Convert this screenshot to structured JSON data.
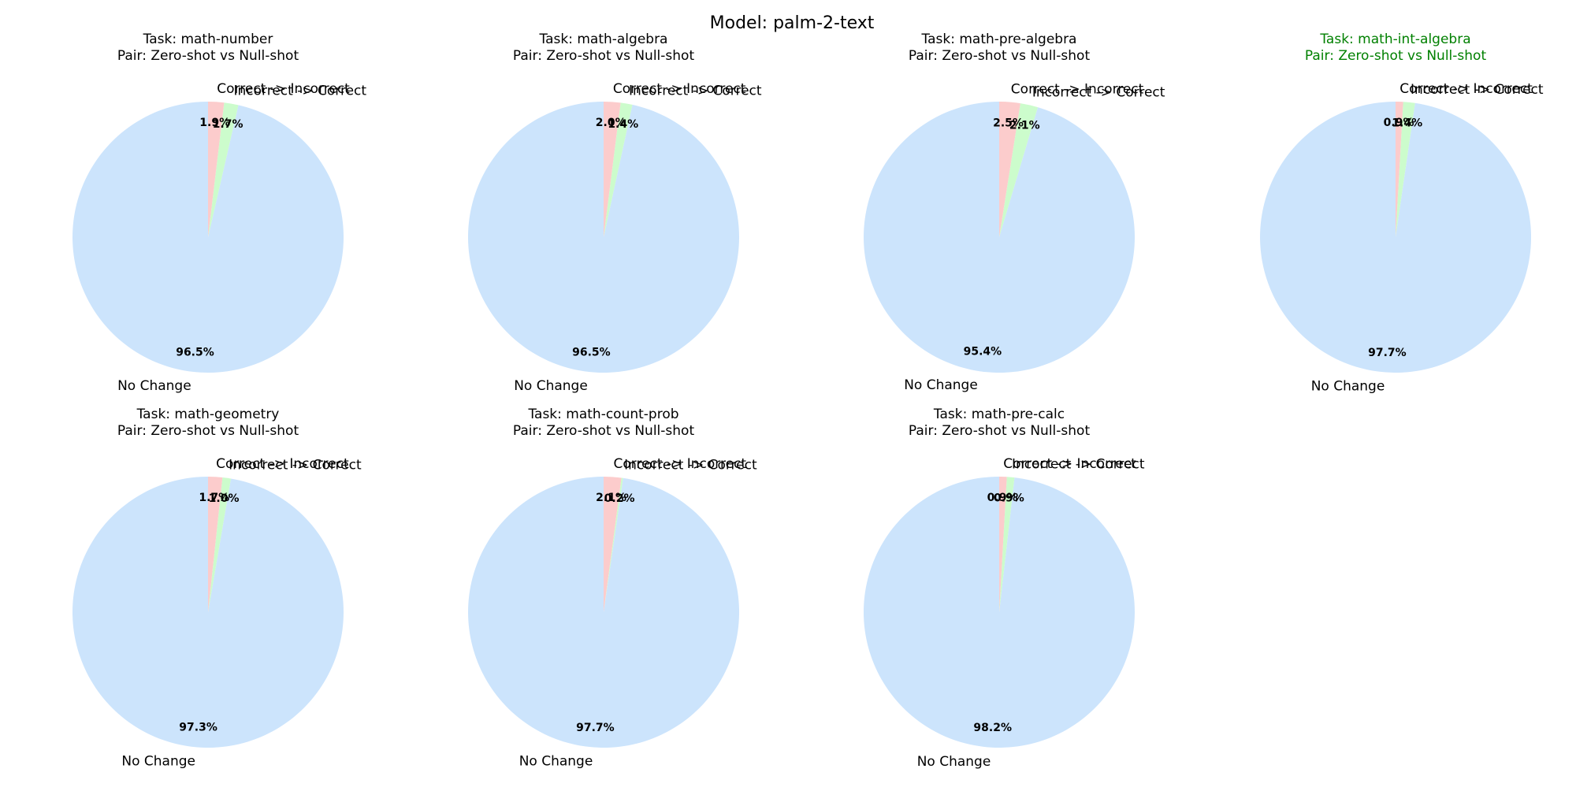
{
  "figure_title": "Model: palm-2-text",
  "colors": {
    "no_change": "#cce4fc",
    "incorrect_to_correct": "#ccfccc",
    "correct_to_incorrect": "#fccccc",
    "highlight_title": "#008000",
    "default_title": "#000000"
  },
  "chart_data": [
    {
      "type": "pie",
      "title_lines": [
        "Task: math-number",
        "Pair: Zero-shot vs Null-shot"
      ],
      "title_color": "#000000",
      "slices": [
        {
          "label": "No Change",
          "value": 96.5,
          "pct_label": "96.5%"
        },
        {
          "label": "Incorrect -> Correct",
          "value": 1.7,
          "pct_label": "1.7%"
        },
        {
          "label": "Correct -> Incorrect",
          "value": 1.9,
          "pct_label": "1.9%"
        }
      ]
    },
    {
      "type": "pie",
      "title_lines": [
        "Task: math-algebra",
        "Pair: Zero-shot vs Null-shot"
      ],
      "title_color": "#000000",
      "slices": [
        {
          "label": "No Change",
          "value": 96.5,
          "pct_label": "96.5%"
        },
        {
          "label": "Incorrect -> Correct",
          "value": 1.4,
          "pct_label": "1.4%"
        },
        {
          "label": "Correct -> Incorrect",
          "value": 2.0,
          "pct_label": "2.0%"
        }
      ]
    },
    {
      "type": "pie",
      "title_lines": [
        "Task: math-pre-algebra",
        "Pair: Zero-shot vs Null-shot"
      ],
      "title_color": "#000000",
      "slices": [
        {
          "label": "No Change",
          "value": 95.4,
          "pct_label": "95.4%"
        },
        {
          "label": "Incorrect -> Correct",
          "value": 2.1,
          "pct_label": "2.1%"
        },
        {
          "label": "Correct -> Incorrect",
          "value": 2.5,
          "pct_label": "2.5%"
        }
      ]
    },
    {
      "type": "pie",
      "title_lines": [
        "Task: math-int-algebra",
        "Pair: Zero-shot vs Null-shot"
      ],
      "title_color": "#008000",
      "slices": [
        {
          "label": "No Change",
          "value": 97.7,
          "pct_label": "97.7%"
        },
        {
          "label": "Incorrect -> Correct",
          "value": 1.4,
          "pct_label": "1.4%"
        },
        {
          "label": "Correct -> Incorrect",
          "value": 0.9,
          "pct_label": "0.9%"
        }
      ]
    },
    {
      "type": "pie",
      "title_lines": [
        "Task: math-geometry",
        "Pair: Zero-shot vs Null-shot"
      ],
      "title_color": "#000000",
      "slices": [
        {
          "label": "No Change",
          "value": 97.3,
          "pct_label": "97.3%"
        },
        {
          "label": "Incorrect -> Correct",
          "value": 1.0,
          "pct_label": "1.0%"
        },
        {
          "label": "Correct -> Incorrect",
          "value": 1.7,
          "pct_label": "1.7%"
        }
      ]
    },
    {
      "type": "pie",
      "title_lines": [
        "Task: math-count-prob",
        "Pair: Zero-shot vs Null-shot"
      ],
      "title_color": "#000000",
      "slices": [
        {
          "label": "No Change",
          "value": 97.7,
          "pct_label": "97.7%"
        },
        {
          "label": "Incorrect -> Correct",
          "value": 0.2,
          "pct_label": "0.2%"
        },
        {
          "label": "Correct -> Incorrect",
          "value": 2.1,
          "pct_label": "2.1%"
        }
      ]
    },
    {
      "type": "pie",
      "title_lines": [
        "Task: math-pre-calc",
        "Pair: Zero-shot vs Null-shot"
      ],
      "title_color": "#000000",
      "slices": [
        {
          "label": "No Change",
          "value": 98.2,
          "pct_label": "98.2%"
        },
        {
          "label": "Incorrect -> Correct",
          "value": 0.9,
          "pct_label": "0.9%"
        },
        {
          "label": "Correct -> Incorrect",
          "value": 0.9,
          "pct_label": "0.9%"
        }
      ]
    }
  ]
}
